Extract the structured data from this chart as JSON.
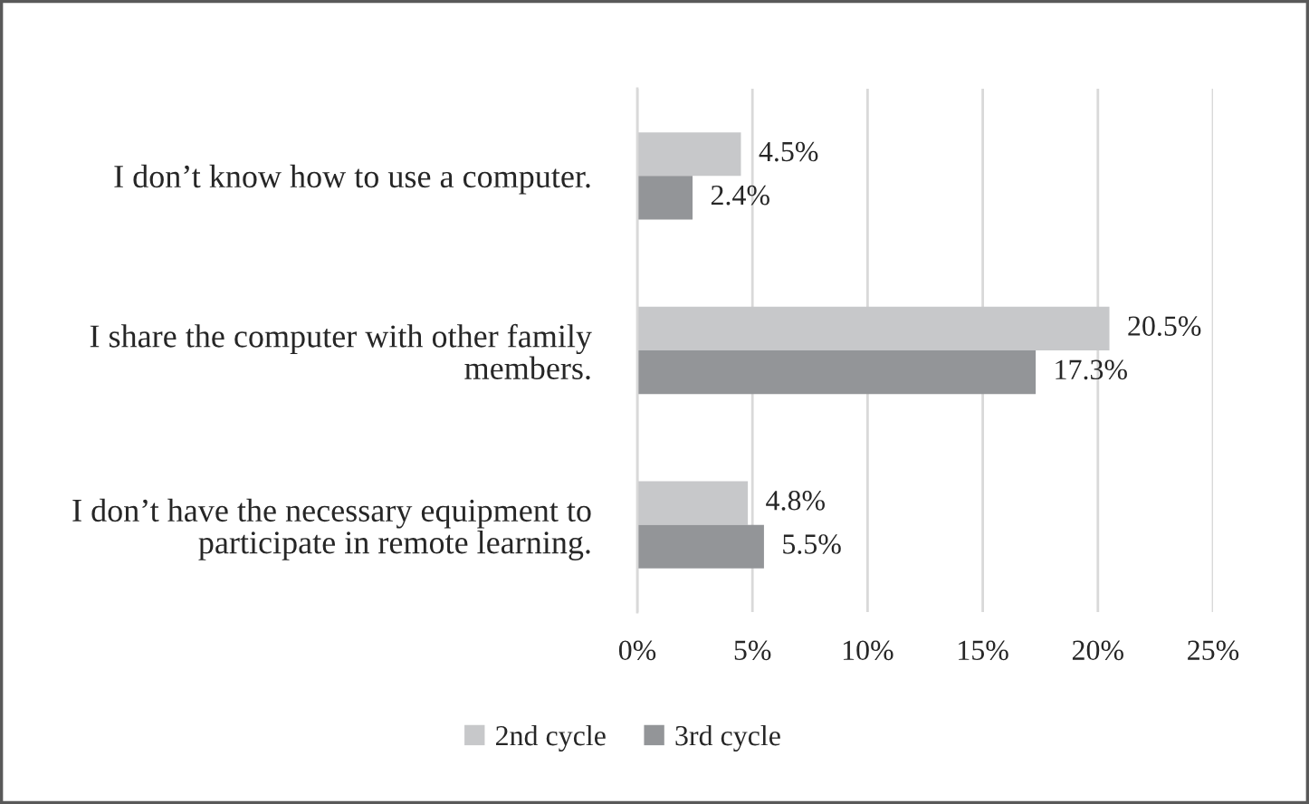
{
  "chart_data": {
    "type": "bar",
    "orientation": "horizontal",
    "categories": [
      "I don’t know how to use a computer.",
      "I share the computer with other family members.",
      "I don’t have the necessary equipment to participate in remote learning."
    ],
    "series": [
      {
        "name": "2nd cycle",
        "color": "#c7c8ca",
        "values": [
          4.5,
          20.5,
          4.8
        ],
        "value_labels": [
          "4.5%",
          "20.5%",
          "4.8%"
        ]
      },
      {
        "name": "3rd cycle",
        "color": "#939598",
        "values": [
          2.4,
          17.3,
          5.5
        ],
        "value_labels": [
          "2.4%",
          "17.3%",
          "5.5%"
        ]
      }
    ],
    "xlim": [
      0,
      25
    ],
    "xticks": [
      {
        "value": 0,
        "label": "0%"
      },
      {
        "value": 5,
        "label": "5%"
      },
      {
        "value": 10,
        "label": "10%"
      },
      {
        "value": 15,
        "label": "15%"
      },
      {
        "value": 20,
        "label": "20%"
      },
      {
        "value": 25,
        "label": "25%"
      }
    ],
    "grid": "x",
    "legend": "bottom"
  }
}
